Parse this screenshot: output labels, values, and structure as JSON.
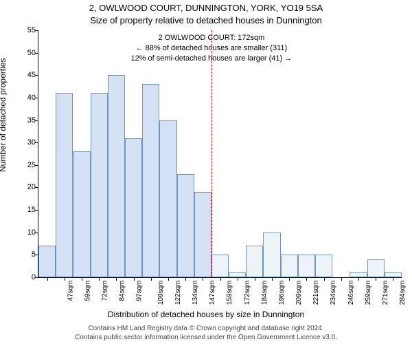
{
  "title_line1": "2, OWLWOOD COURT, DUNNINGTON, YORK, YO19 5SA",
  "title_line2": "Size of property relative to detached houses in Dunnington",
  "ylabel": "Number of detached properties",
  "xlabel": "Distribution of detached houses by size in Dunnington",
  "footer_line1": "Contains HM Land Registry data © Crown copyright and database right 2024.",
  "footer_line2": "Contains public sector information licensed under the Open Government Licence v3.0.",
  "annotation": {
    "line1": "2 OWLWOOD COURT: 172sqm",
    "line2": "← 88% of detached houses are smaller (311)",
    "line3": "12% of semi-detached houses are larger (41) →"
  },
  "chart": {
    "type": "histogram",
    "ylim": [
      0,
      55
    ],
    "ytick_step": 5,
    "background_color": "#ffffff",
    "axis_color": "#000000",
    "marker_color": "#cc0000",
    "marker_x_index": 10,
    "bar_fill_left": "#d3e1f2",
    "bar_fill_right": "#eff4fb",
    "bar_border": "#6f93c4",
    "categories": [
      "47sqm",
      "59sqm",
      "72sqm",
      "84sqm",
      "97sqm",
      "109sqm",
      "122sqm",
      "134sqm",
      "147sqm",
      "159sqm",
      "172sqm",
      "184sqm",
      "196sqm",
      "209sqm",
      "221sqm",
      "234sqm",
      "246sqm",
      "259sqm",
      "271sqm",
      "284sqm",
      "296sqm"
    ],
    "values": [
      7,
      41,
      28,
      41,
      45,
      31,
      43,
      35,
      23,
      19,
      5,
      1,
      7,
      10,
      5,
      5,
      5,
      0,
      1,
      4,
      1
    ],
    "annotation_fontsize": 11,
    "title_fontsize": 13,
    "label_fontsize": 12,
    "tick_fontsize": 11
  }
}
